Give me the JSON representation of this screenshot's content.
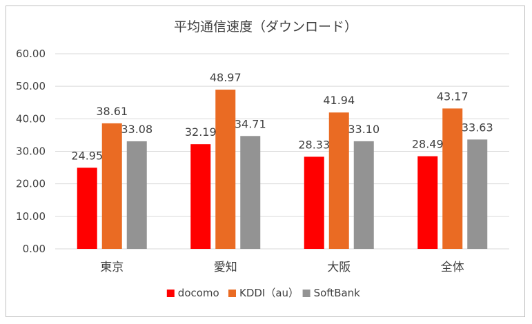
{
  "chart_data": {
    "type": "bar",
    "title": "平均通信速度（ダウンロード）",
    "categories": [
      "東京",
      "愛知",
      "大阪",
      "全体"
    ],
    "series": [
      {
        "name": "docomo",
        "color": "#ff0000",
        "values": [
          24.95,
          32.19,
          28.33,
          28.49
        ]
      },
      {
        "name": "KDDI（au）",
        "color": "#ea6b23",
        "values": [
          38.61,
          48.97,
          41.94,
          43.17
        ]
      },
      {
        "name": "SoftBank",
        "color": "#939393",
        "values": [
          33.08,
          34.71,
          33.1,
          33.63
        ]
      }
    ],
    "ylim": [
      0,
      60
    ],
    "yticks": [
      "0.00",
      "10.00",
      "20.00",
      "30.00",
      "40.00",
      "50.00",
      "60.00"
    ],
    "grid": true,
    "legend_position": "bottom"
  }
}
